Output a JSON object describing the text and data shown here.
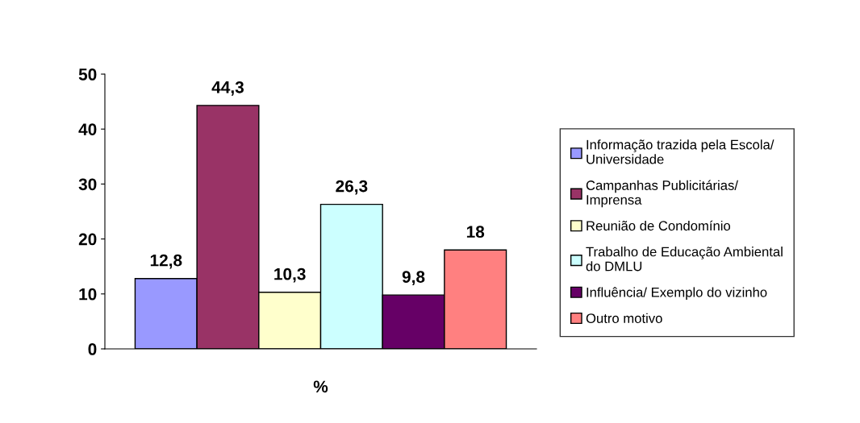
{
  "chart_data": {
    "type": "bar",
    "categories": [
      "%"
    ],
    "series": [
      {
        "name": "Informação trazida pela Escola/ Universidade",
        "color": "#9999ff",
        "values": [
          12.8
        ],
        "value_labels": [
          "12,8"
        ]
      },
      {
        "name": "Campanhas Publicitárias/ Imprensa",
        "color": "#993366",
        "values": [
          44.3
        ],
        "value_labels": [
          "44,3"
        ]
      },
      {
        "name": "Reunião de Condomínio",
        "color": "#ffffcc",
        "values": [
          10.3
        ],
        "value_labels": [
          "10,3"
        ]
      },
      {
        "name": "Trabalho de Educação Ambiental do DMLU",
        "color": "#ccffff",
        "values": [
          26.3
        ],
        "value_labels": [
          "26,3"
        ]
      },
      {
        "name": "Influência/ Exemplo do vizinho",
        "color": "#660066",
        "values": [
          9.8
        ],
        "value_labels": [
          "9,8"
        ]
      },
      {
        "name": "Outro motivo",
        "color": "#ff8080",
        "values": [
          18
        ],
        "value_labels": [
          "18"
        ]
      }
    ],
    "ylim": [
      0,
      50
    ],
    "yticks": [
      0,
      10,
      20,
      30,
      40,
      50
    ],
    "grid": false,
    "legend": "right"
  }
}
